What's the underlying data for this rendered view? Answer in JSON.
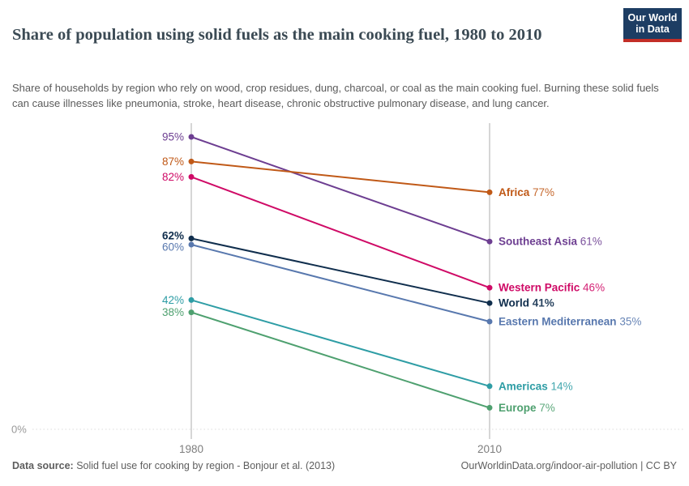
{
  "logo": {
    "line1": "Our World",
    "line2": "in Data"
  },
  "header": {
    "title": "Share of population using solid fuels as the main cooking fuel, 1980 to 2010",
    "subtitle": "Share of households by region who rely on wood, crop residues, dung, charcoal, or coal as the main cooking fuel. Burning these solid fuels can cause illnesses like pneumonia, stroke, heart disease, chronic obstructive pulmonary disease, and lung cancer."
  },
  "chart_data": {
    "type": "line",
    "subtype": "slope",
    "x": [
      "1980",
      "2010"
    ],
    "series": [
      {
        "name": "Southeast Asia",
        "values": [
          95,
          61
        ],
        "color": "#6D3E91"
      },
      {
        "name": "Africa",
        "values": [
          87,
          77
        ],
        "color": "#C05917"
      },
      {
        "name": "Western Pacific",
        "values": [
          82,
          46
        ],
        "color": "#CF0A66"
      },
      {
        "name": "World",
        "values": [
          62,
          41
        ],
        "color": "#102E4D",
        "bold": true
      },
      {
        "name": "Eastern Mediterranean",
        "values": [
          60,
          35
        ],
        "color": "#5878AE"
      },
      {
        "name": "Americas",
        "values": [
          42,
          14
        ],
        "color": "#2E9DA5"
      },
      {
        "name": "Europe",
        "values": [
          38,
          7
        ],
        "color": "#4EA06F"
      }
    ],
    "ylim": [
      0,
      100
    ],
    "y_zero_label": "0%",
    "value_suffix": "%",
    "grid": "zero-line-only",
    "legend": "inline-right",
    "title": "Share of population using solid fuels as the main cooking fuel, 1980 to 2010",
    "xlabel": "",
    "ylabel": ""
  },
  "footer": {
    "datasource_label": "Data source:",
    "datasource_text": " Solid fuel use for cooking by region - Bonjour et al. (2013)",
    "credit": "OurWorldinData.org/indoor-air-pollution | CC BY"
  }
}
